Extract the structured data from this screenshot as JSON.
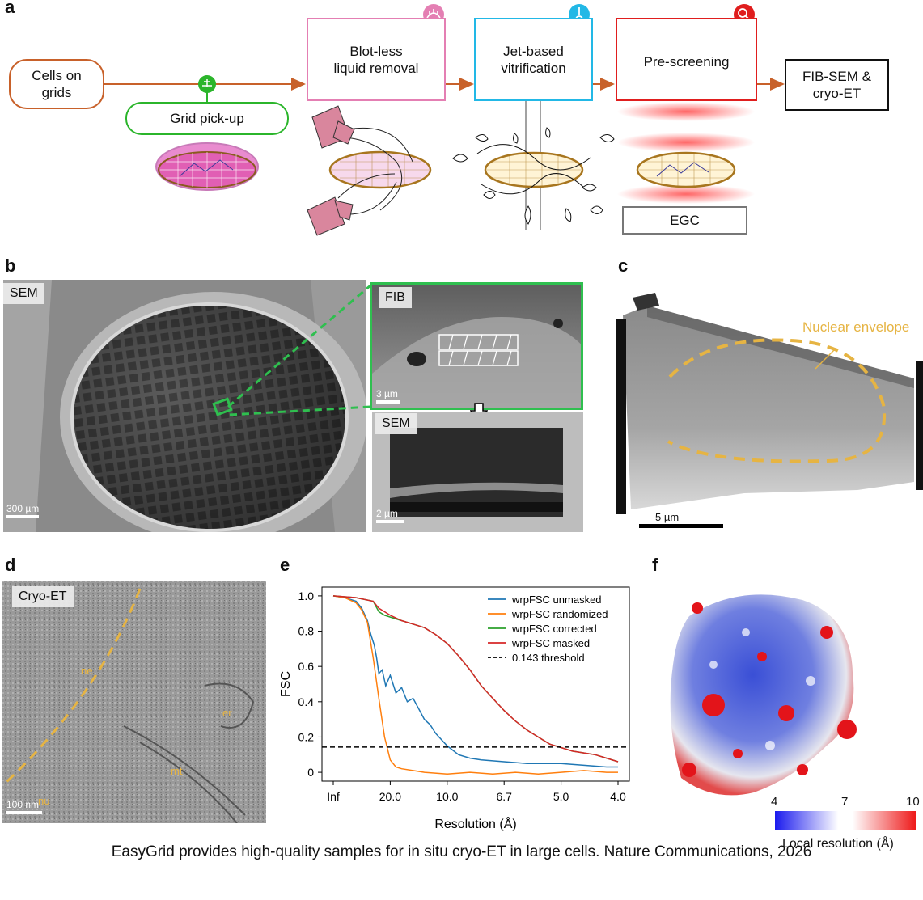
{
  "panel_a": {
    "label": "a",
    "cells_on_grids": "Cells on\ngrids",
    "grid_pickup": "Grid pick-up",
    "blotless": "Blot-less\nliquid removal",
    "jet": "Jet-based\nvitrification",
    "prescreen": "Pre-screening",
    "fibsem": "FIB-SEM &\ncryo-ET",
    "egc": "EGC",
    "colors": {
      "orange": "#c8612a",
      "green": "#2bb52b",
      "pink": "#e47fb3",
      "cyan": "#22b8e6",
      "red": "#e01e1e"
    },
    "icons": [
      "grid-pickup-icon",
      "blotless-icon",
      "jet-icon",
      "prescreen-icon"
    ]
  },
  "panel_b": {
    "label": "b",
    "sem_tag": "SEM",
    "fib_tag": "FIB",
    "sem2_tag": "SEM",
    "scale_main": "300 µm",
    "scale_fib": "3 µm",
    "scale_sem2": "2 µm"
  },
  "panel_c": {
    "label": "c",
    "annotation": "Nuclear envelope",
    "scale": "5 µm"
  },
  "panel_d": {
    "label": "d",
    "tag": "Cryo-ET",
    "labels": [
      "ne",
      "nu",
      "er",
      "mt"
    ],
    "scale": "100 nm"
  },
  "panel_e": {
    "label": "e",
    "chart_data": {
      "type": "line",
      "xlabel": "Resolution (Å)",
      "ylabel": "FSC",
      "x_tick_labels": [
        "Inf",
        "20.0",
        "10.0",
        "6.7",
        "5.0",
        "4.0"
      ],
      "x_tick_positions": [
        0,
        0.05,
        0.1,
        0.15,
        0.2,
        0.25
      ],
      "xlim": [
        0,
        0.25
      ],
      "ylim": [
        -0.05,
        1.05
      ],
      "y_ticks": [
        "1.0",
        "0.8",
        "0.6",
        "0.4",
        "0.2",
        "0"
      ],
      "y_tick_values": [
        1.0,
        0.8,
        0.6,
        0.4,
        0.2,
        0.0
      ],
      "legend_position": "top-right",
      "series": [
        {
          "name": "wrpFSC unmasked",
          "color": "#1f77b4",
          "dash": false,
          "x": [
            0,
            0.01,
            0.02,
            0.025,
            0.03,
            0.033,
            0.036,
            0.038,
            0.04,
            0.043,
            0.046,
            0.05,
            0.055,
            0.06,
            0.065,
            0.07,
            0.075,
            0.08,
            0.085,
            0.09,
            0.1,
            0.11,
            0.12,
            0.13,
            0.15,
            0.17,
            0.2,
            0.22,
            0.24,
            0.25
          ],
          "y": [
            1.0,
            0.99,
            0.97,
            0.93,
            0.86,
            0.78,
            0.72,
            0.65,
            0.56,
            0.58,
            0.49,
            0.55,
            0.45,
            0.48,
            0.4,
            0.42,
            0.36,
            0.3,
            0.27,
            0.22,
            0.15,
            0.1,
            0.08,
            0.07,
            0.06,
            0.05,
            0.05,
            0.04,
            0.03,
            0.03
          ]
        },
        {
          "name": "wrpFSC randomized",
          "color": "#ff7f0e",
          "dash": false,
          "x": [
            0,
            0.01,
            0.02,
            0.025,
            0.03,
            0.035,
            0.04,
            0.045,
            0.05,
            0.055,
            0.06,
            0.07,
            0.08,
            0.1,
            0.12,
            0.14,
            0.16,
            0.18,
            0.2,
            0.22,
            0.24,
            0.25
          ],
          "y": [
            1.0,
            0.99,
            0.96,
            0.92,
            0.85,
            0.65,
            0.42,
            0.2,
            0.07,
            0.03,
            0.02,
            0.01,
            0.0,
            -0.01,
            0.0,
            -0.01,
            0.0,
            -0.01,
            0.0,
            0.01,
            0.0,
            0.0
          ],
          "note": ""
        },
        {
          "name": "wrpFSC corrected",
          "color": "#2ca02c",
          "dash": false,
          "x": [
            0,
            0.02,
            0.035,
            0.04,
            0.045,
            0.05,
            0.06,
            0.07,
            0.08,
            0.09,
            0.1,
            0.11,
            0.12,
            0.13,
            0.14,
            0.15,
            0.16,
            0.17,
            0.18,
            0.19,
            0.2,
            0.21,
            0.22,
            0.23,
            0.24,
            0.25
          ],
          "y": [
            1.0,
            0.99,
            0.97,
            0.91,
            0.89,
            0.88,
            0.86,
            0.84,
            0.82,
            0.78,
            0.73,
            0.66,
            0.58,
            0.49,
            0.42,
            0.35,
            0.29,
            0.24,
            0.2,
            0.16,
            0.14,
            0.12,
            0.11,
            0.1,
            0.08,
            0.06
          ]
        },
        {
          "name": "wrpFSC masked",
          "color": "#d62728",
          "dash": false,
          "x": [
            0,
            0.02,
            0.035,
            0.04,
            0.045,
            0.05,
            0.06,
            0.07,
            0.08,
            0.09,
            0.1,
            0.11,
            0.12,
            0.13,
            0.14,
            0.15,
            0.16,
            0.17,
            0.18,
            0.19,
            0.2,
            0.21,
            0.22,
            0.23,
            0.24,
            0.25
          ],
          "y": [
            1.0,
            0.99,
            0.97,
            0.93,
            0.91,
            0.89,
            0.86,
            0.84,
            0.82,
            0.78,
            0.73,
            0.66,
            0.58,
            0.49,
            0.42,
            0.35,
            0.29,
            0.24,
            0.2,
            0.16,
            0.14,
            0.12,
            0.11,
            0.1,
            0.08,
            0.06
          ]
        },
        {
          "name": "0.143 threshold",
          "color": "#000000",
          "dash": true,
          "x": [
            -0.01,
            0.26
          ],
          "y": [
            0.143,
            0.143
          ]
        }
      ]
    }
  },
  "panel_f": {
    "label": "f",
    "colorbar_ticks": [
      "4",
      "7",
      "10"
    ],
    "colorbar_label": "Local resolution (Å)"
  },
  "caption": "EasyGrid provides high-quality samples for in situ cryo-ET in large cells. Nature Communications, 2026"
}
